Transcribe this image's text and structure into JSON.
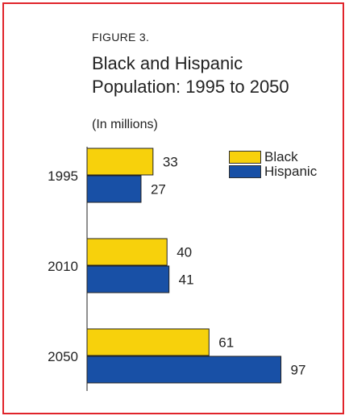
{
  "figure_label": "FIGURE 3.",
  "title_line1": "Black and Hispanic",
  "title_line2": "Population:  1995 to 2050",
  "subtitle": "(In millions)",
  "colors": {
    "black": "#f7d10c",
    "hispanic": "#1850a6",
    "frame": "#e0242b"
  },
  "chart_data": {
    "type": "bar",
    "orientation": "horizontal",
    "title": "Black and Hispanic Population:  1995 to 2050",
    "subtitle": "(In millions)",
    "categories": [
      "1995",
      "2010",
      "2050"
    ],
    "series": [
      {
        "name": "Black",
        "values": [
          33,
          40,
          61
        ]
      },
      {
        "name": "Hispanic",
        "values": [
          27,
          41,
          97
        ]
      }
    ],
    "xlim": [
      0,
      100
    ],
    "grid": false,
    "legend": "top-right"
  }
}
